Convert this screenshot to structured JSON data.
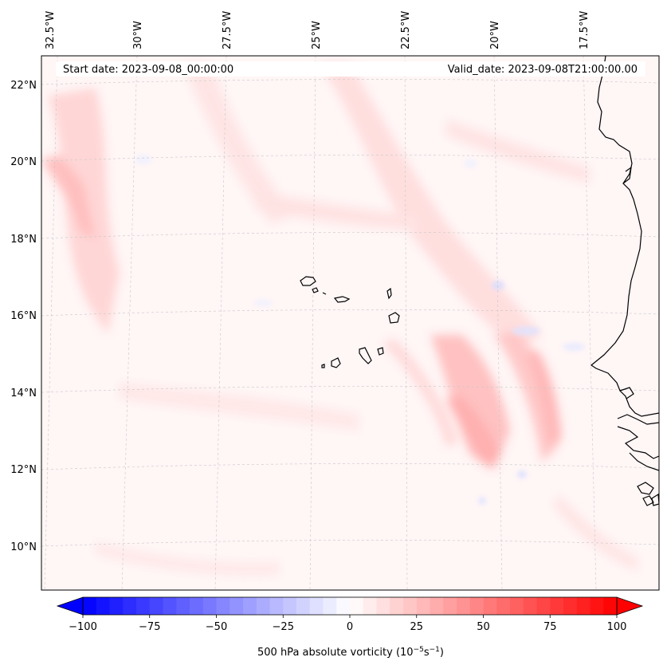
{
  "map": {
    "start_date_text": "Start date: 2023-09-08_00:00:00",
    "valid_date_text": "Valid_date: 2023-09-08T21:00:00.00",
    "longitude_labels": [
      "32.5°W",
      "30°W",
      "27.5°W",
      "25°W",
      "22.5°W",
      "20°W",
      "17.5°W"
    ],
    "latitude_labels": [
      "22°N",
      "20°N",
      "18°N",
      "16°N",
      "14°N",
      "12°N",
      "10°N"
    ],
    "field": "500 hPa absolute vorticity",
    "coastline_color": "#000000",
    "gridline_color": "#bfbfbf"
  },
  "colorbar": {
    "label_prefix": "500 hPa absolute vorticity (10",
    "label_exp1": "−5",
    "label_mid": "s",
    "label_exp2": "−1",
    "label_suffix": ")",
    "tick_labels": [
      "−100",
      "−75",
      "−50",
      "−25",
      "0",
      "25",
      "50",
      "75",
      "100"
    ],
    "min": -100,
    "max": 100,
    "colormap": "bwr",
    "low_color": "#0000ff",
    "mid_color": "#ffffff",
    "high_color": "#ff0000"
  }
}
